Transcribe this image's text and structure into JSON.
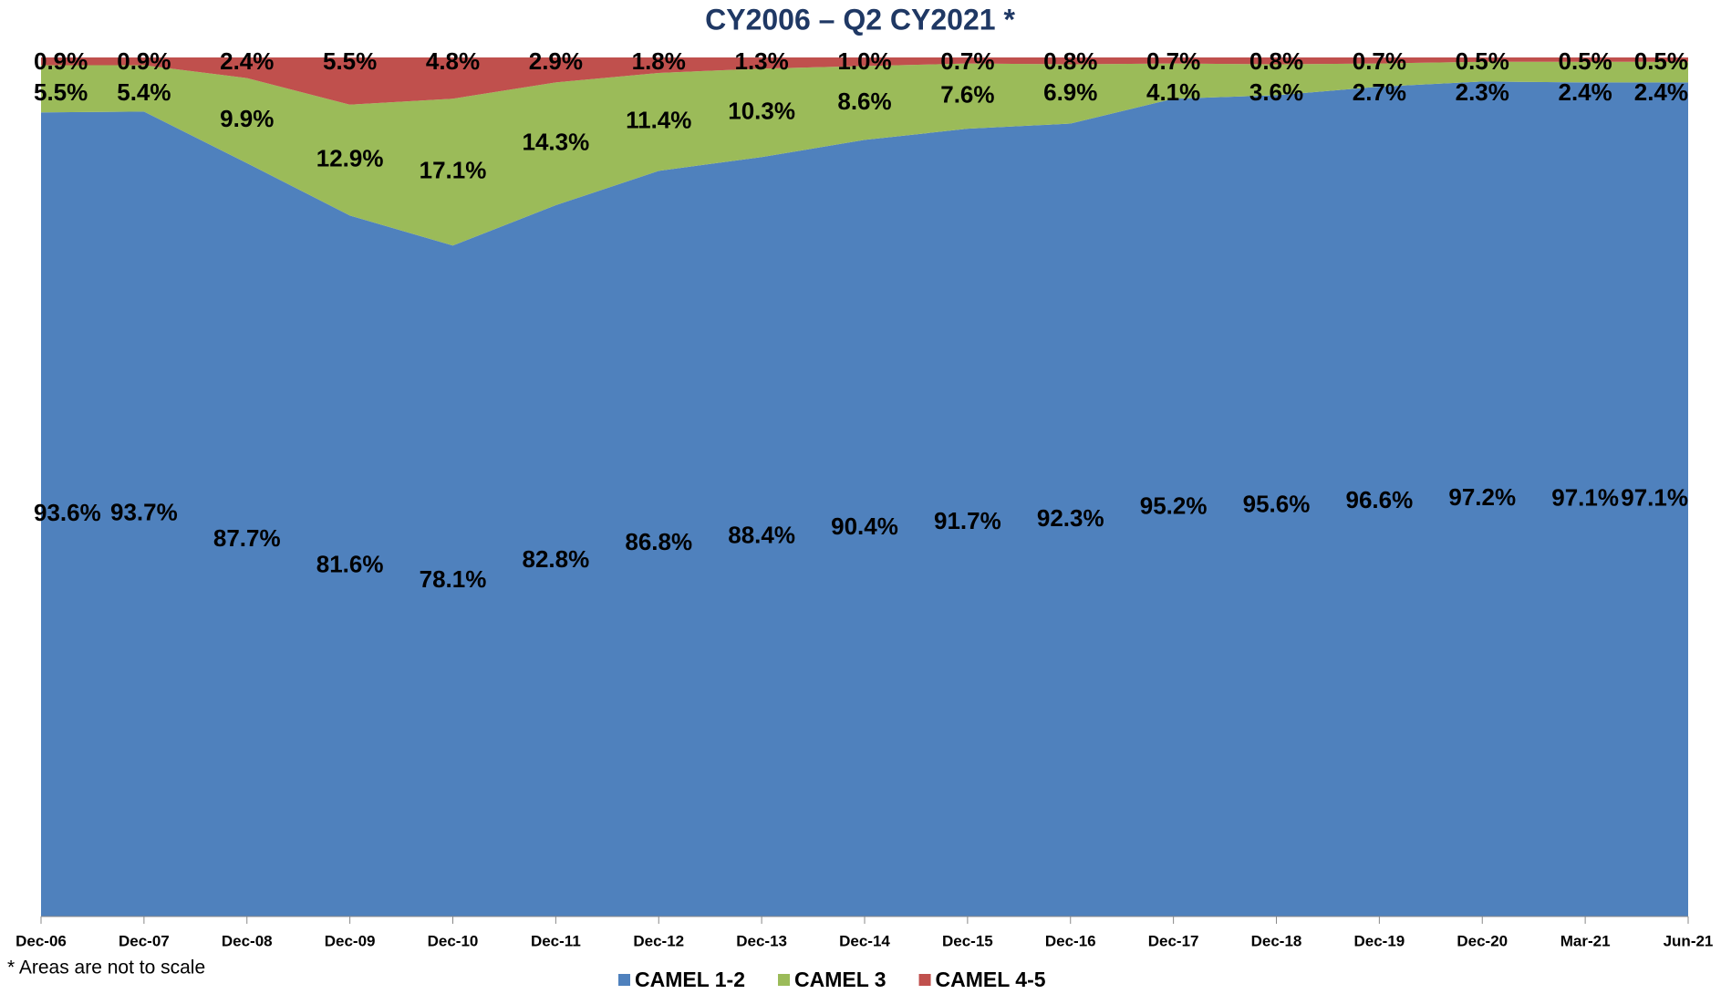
{
  "chart_data": {
    "type": "stacked_area",
    "title": "CY2006 – Q2 CY2021 *",
    "note": "* Areas are not to scale",
    "categories": [
      "Dec-06",
      "Dec-07",
      "Dec-08",
      "Dec-09",
      "Dec-10",
      "Dec-11",
      "Dec-12",
      "Dec-13",
      "Dec-14",
      "Dec-15",
      "Dec-16",
      "Dec-17",
      "Dec-18",
      "Dec-19",
      "Dec-20",
      "Mar-21",
      "Jun-21"
    ],
    "ylim": [
      0,
      100
    ],
    "series": [
      {
        "name": "CAMEL 1-2",
        "color": "#4f81bd",
        "values": [
          93.6,
          93.7,
          87.7,
          81.6,
          78.1,
          82.8,
          86.8,
          88.4,
          90.4,
          91.7,
          92.3,
          95.2,
          95.6,
          96.6,
          97.2,
          97.1,
          97.1
        ],
        "value_labels": [
          "93.6%",
          "93.7%",
          "87.7%",
          "81.6%",
          "78.1%",
          "82.8%",
          "86.8%",
          "88.4%",
          "90.4%",
          "91.7%",
          "92.3%",
          "95.2%",
          "95.6%",
          "96.6%",
          "97.2%",
          "97.1%",
          "97.1%"
        ]
      },
      {
        "name": "CAMEL 3",
        "color": "#9bbb59",
        "values": [
          5.5,
          5.4,
          9.9,
          12.9,
          17.1,
          14.3,
          11.4,
          10.3,
          8.6,
          7.6,
          6.9,
          4.1,
          3.6,
          2.7,
          2.3,
          2.4,
          2.4
        ],
        "value_labels": [
          "5.5%",
          "5.4%",
          "9.9%",
          "12.9%",
          "17.1%",
          "14.3%",
          "11.4%",
          "10.3%",
          "8.6%",
          "7.6%",
          "6.9%",
          "4.1%",
          "3.6%",
          "2.7%",
          "2.3%",
          "2.4%",
          "2.4%"
        ]
      },
      {
        "name": "CAMEL 4-5",
        "color": "#c0504d",
        "values": [
          0.9,
          0.9,
          2.4,
          5.5,
          4.8,
          2.9,
          1.8,
          1.3,
          1.0,
          0.7,
          0.8,
          0.7,
          0.8,
          0.7,
          0.5,
          0.5,
          0.5
        ],
        "value_labels": [
          "0.9%",
          "0.9%",
          "2.4%",
          "5.5%",
          "4.8%",
          "2.9%",
          "1.8%",
          "1.3%",
          "1.0%",
          "0.7%",
          "0.8%",
          "0.7%",
          "0.8%",
          "0.7%",
          "0.5%",
          "0.5%",
          "0.5%"
        ]
      }
    ],
    "legend": "bottom"
  }
}
